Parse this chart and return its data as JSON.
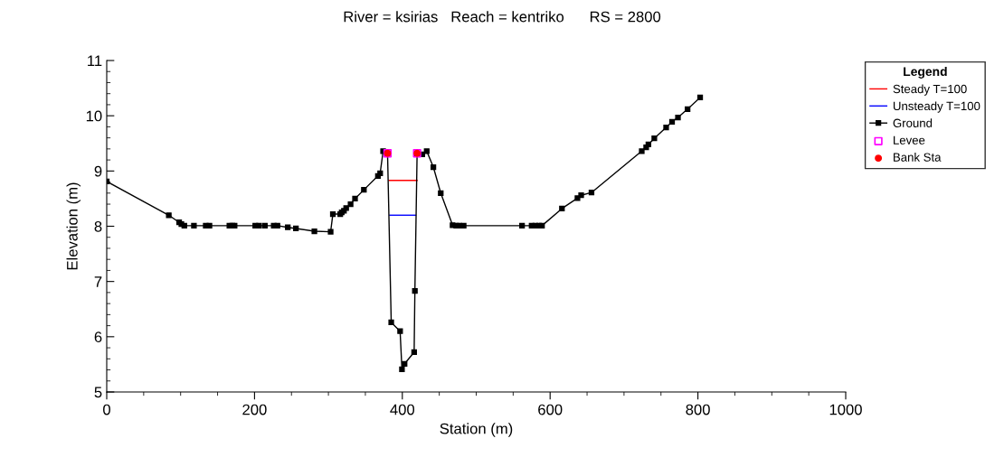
{
  "chart_data": {
    "type": "line",
    "title": "River = ksirias   Reach = kentriko      RS = 2800",
    "xlabel": "Station (m)",
    "ylabel": "Elevation (m)",
    "legend_title": "Legend",
    "legend": "right",
    "grid": false,
    "xlim": [
      0,
      1000
    ],
    "xticks": [
      0,
      200,
      400,
      600,
      800,
      1000
    ],
    "ylim": [
      5,
      11
    ],
    "yticks": [
      5,
      6,
      7,
      8,
      9,
      10,
      11
    ],
    "series": [
      {
        "name": "Steady T=100",
        "color": "#ff0000",
        "marker": "none",
        "x": [
          382,
          420
        ],
        "values": [
          8.83,
          8.83
        ]
      },
      {
        "name": "Unsteady T=100",
        "color": "#0000ff",
        "marker": "none",
        "x": [
          383,
          418
        ],
        "values": [
          8.2,
          8.2
        ]
      },
      {
        "name": "Ground",
        "color": "#000000",
        "marker": "square",
        "x": [
          0,
          84,
          98,
          101,
          105,
          118,
          134,
          139,
          166,
          170,
          173,
          201,
          206,
          214,
          226,
          231,
          245,
          256,
          281,
          303,
          306,
          316,
          318,
          321,
          324,
          330,
          336,
          348,
          367,
          370,
          374,
          380,
          385,
          397,
          399.5,
          403,
          416,
          417,
          420,
          427,
          433,
          442,
          452,
          468,
          473,
          477,
          483,
          562,
          575,
          580,
          585,
          589,
          616,
          637,
          642,
          656,
          724,
          730,
          733,
          741,
          757,
          765,
          773,
          786,
          803
        ],
        "values": [
          8.81,
          8.2,
          8.07,
          8.04,
          8.01,
          8.01,
          8.01,
          8.01,
          8.01,
          8.01,
          8.01,
          8.01,
          8.01,
          8.01,
          8.01,
          8.01,
          7.98,
          7.96,
          7.91,
          7.9,
          8.22,
          8.22,
          8.25,
          8.28,
          8.33,
          8.4,
          8.5,
          8.66,
          8.91,
          8.96,
          9.36,
          9.32,
          6.26,
          6.1,
          5.41,
          5.51,
          5.72,
          6.83,
          9.32,
          9.3,
          9.36,
          9.07,
          8.6,
          8.02,
          8.01,
          8.01,
          8.01,
          8.01,
          8.01,
          8.01,
          8.01,
          8.01,
          8.32,
          8.51,
          8.56,
          8.61,
          9.36,
          9.43,
          9.48,
          9.59,
          9.79,
          9.89,
          9.97,
          10.12,
          10.33
        ]
      },
      {
        "name": "Levee",
        "color": "#ff00ff",
        "type": "scatter",
        "marker": "square",
        "x": [
          380,
          420
        ],
        "values": [
          9.32,
          9.32
        ]
      },
      {
        "name": "Bank Sta",
        "color": "#ff0000",
        "type": "scatter",
        "marker": "circle",
        "x": [
          380,
          420
        ],
        "values": [
          9.32,
          9.32
        ]
      }
    ]
  }
}
